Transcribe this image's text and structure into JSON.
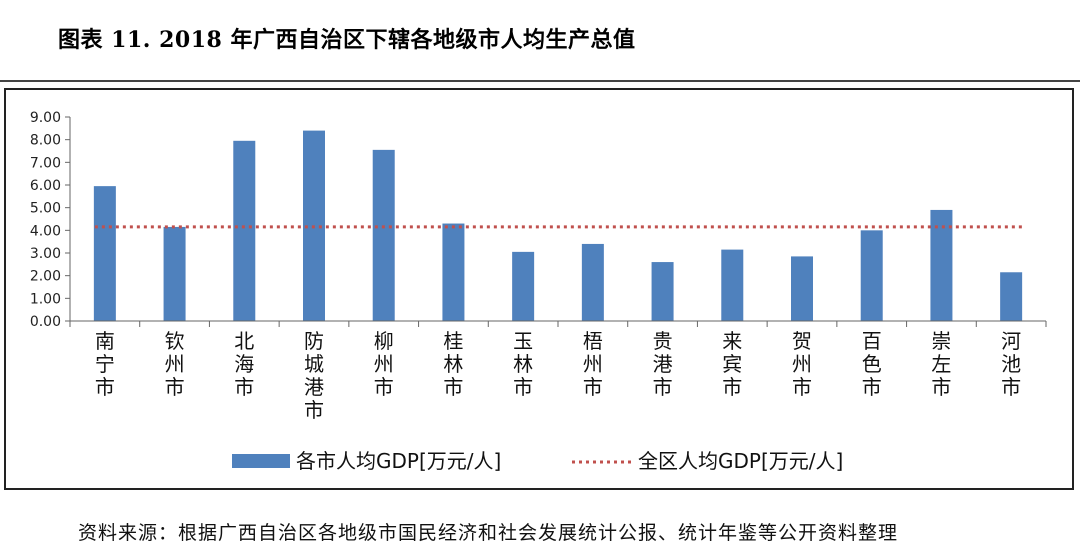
{
  "figure": {
    "title": "图表 11.   2018 年广西自治区下辖各地级市人均生产总值",
    "source": "资料来源：根据广西自治区各地级市国民经济和社会发展统计公报、统计年鉴等公开资料整理"
  },
  "chart_data": {
    "type": "bar",
    "categories": [
      "南宁市",
      "钦州市",
      "北海市",
      "防城港市",
      "柳州市",
      "桂林市",
      "玉林市",
      "梧州市",
      "贵港市",
      "来宾市",
      "贺州市",
      "百色市",
      "崇左市",
      "河池市"
    ],
    "series": [
      {
        "name": "各市人均GDP[万元/人]",
        "type": "bar",
        "color": "#4F81BD",
        "values": [
          5.95,
          4.15,
          7.95,
          8.4,
          7.55,
          4.3,
          3.05,
          3.4,
          2.6,
          3.15,
          2.85,
          4.0,
          4.9,
          2.15
        ]
      },
      {
        "name": "全区人均GDP[万元/人]",
        "type": "line",
        "style": "dotted",
        "color": "#C0504D",
        "value": 4.15
      }
    ],
    "yticks": [
      "0.00",
      "1.00",
      "2.00",
      "3.00",
      "4.00",
      "5.00",
      "6.00",
      "7.00",
      "8.00",
      "9.00"
    ],
    "ylim": [
      0,
      9
    ],
    "grid": false,
    "legend_position": "bottom"
  }
}
